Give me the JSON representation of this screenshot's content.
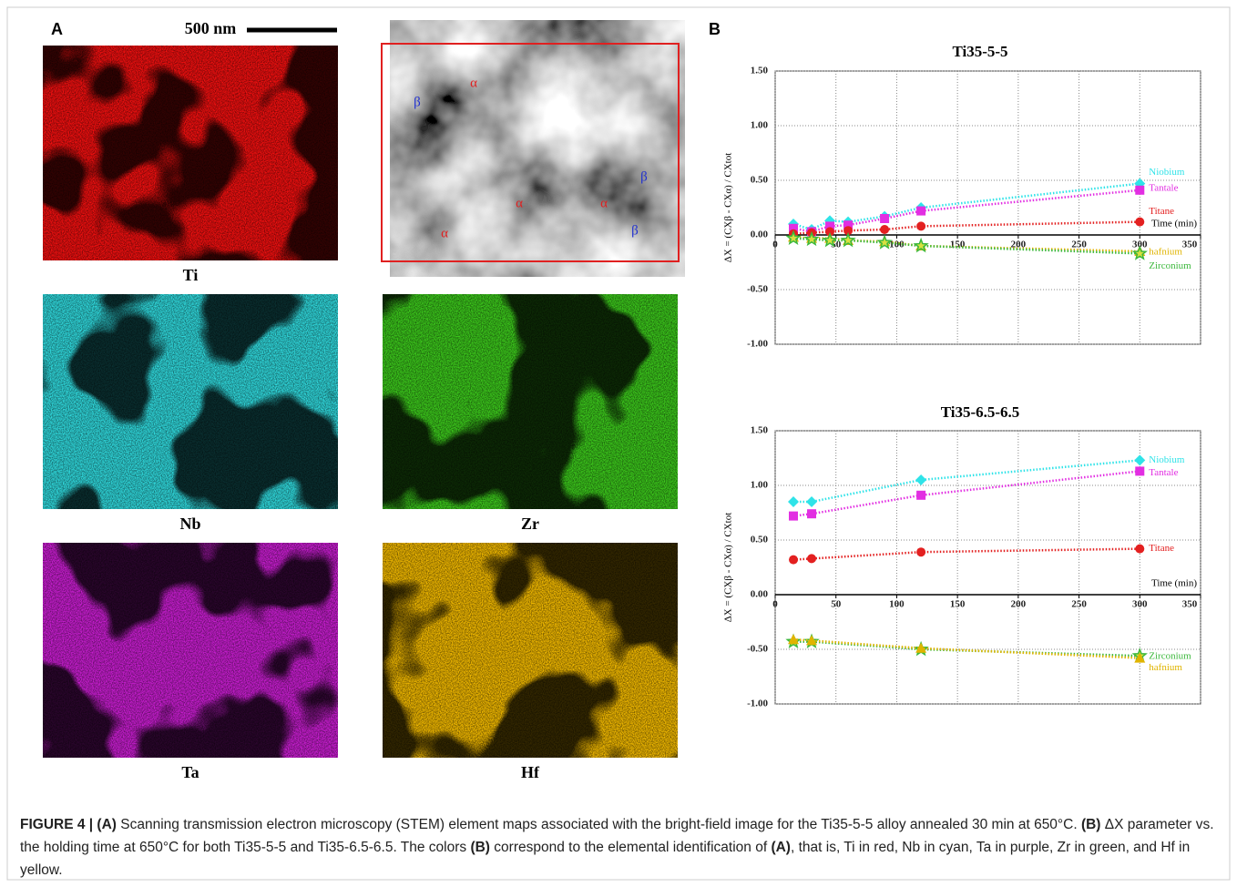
{
  "panel_a": {
    "label": "A",
    "scale_bar": "500 nm",
    "bright_field_labels": [
      "α",
      "α",
      "α",
      "α",
      "β",
      "β",
      "β"
    ],
    "maps": [
      "Ti",
      "Nb",
      "Zr",
      "Ta",
      "Hf"
    ]
  },
  "panel_b": {
    "label": "B"
  },
  "chart_data": [
    {
      "type": "line",
      "title": "Ti35-5-5",
      "y_label": "ΔX = (CXβ - CXα) / CXtot",
      "x_label": "Time (min)",
      "xlim": [
        0,
        350
      ],
      "xticks": [
        0,
        50,
        100,
        150,
        200,
        250,
        300,
        350
      ],
      "ylim": [
        -1,
        1.5
      ],
      "yticks": [
        {
          "value": -1,
          "label": "-1.00"
        },
        {
          "value": -0.5,
          "label": "-0.50"
        },
        {
          "value": 0,
          "label": "0.00"
        },
        {
          "value": 0.5,
          "label": "0.50"
        },
        {
          "value": 1,
          "label": "1.00"
        },
        {
          "value": 1.5,
          "label": "1.50"
        }
      ],
      "grid": true,
      "x": [
        15,
        30,
        45,
        60,
        90,
        120,
        300
      ],
      "series": [
        {
          "name": "Niobium",
          "color": "#2fe3e8",
          "marker": "diamond",
          "values": [
            0.1,
            0.05,
            0.13,
            0.12,
            0.17,
            0.25,
            0.47
          ]
        },
        {
          "name": "Tantale",
          "color": "#e22ee2",
          "marker": "square",
          "values": [
            0.06,
            0.03,
            0.08,
            0.09,
            0.15,
            0.22,
            0.41
          ]
        },
        {
          "name": "Titane",
          "color": "#e32020",
          "marker": "circle",
          "values": [
            0.01,
            0.02,
            0.03,
            0.04,
            0.05,
            0.08,
            0.12
          ]
        },
        {
          "name": "hafnium",
          "color": "#e0b400",
          "marker": "triangle",
          "values": [
            -0.02,
            -0.03,
            -0.03,
            -0.05,
            -0.06,
            -0.1,
            -0.15
          ]
        },
        {
          "name": "Zirconium",
          "color": "#3cb83c",
          "marker": "star",
          "values": [
            -0.03,
            -0.04,
            -0.05,
            -0.05,
            -0.07,
            -0.1,
            -0.17
          ]
        }
      ]
    },
    {
      "type": "line",
      "title": "Ti35-6.5-6.5",
      "y_label": "ΔX = (CXβ - CXα) / CXtot",
      "x_label": "Time (min)",
      "xlim": [
        0,
        350
      ],
      "xticks": [
        0,
        50,
        100,
        150,
        200,
        250,
        300,
        350
      ],
      "ylim": [
        -1,
        1.5
      ],
      "yticks": [
        {
          "value": -1,
          "label": "-1.00"
        },
        {
          "value": -0.5,
          "label": "-0.50"
        },
        {
          "value": 0,
          "label": "0.00"
        },
        {
          "value": 0.5,
          "label": "0.50"
        },
        {
          "value": 1,
          "label": "1.00"
        },
        {
          "value": 1.5,
          "label": "1.50"
        }
      ],
      "grid": true,
      "x": [
        15,
        30,
        120,
        300
      ],
      "series": [
        {
          "name": "Niobium",
          "color": "#2fe3e8",
          "marker": "diamond",
          "values": [
            0.85,
            0.85,
            1.05,
            1.23
          ]
        },
        {
          "name": "Tantale",
          "color": "#e22ee2",
          "marker": "square",
          "values": [
            0.72,
            0.74,
            0.91,
            1.13
          ]
        },
        {
          "name": "Titane",
          "color": "#e32020",
          "marker": "circle",
          "values": [
            0.32,
            0.33,
            0.39,
            0.42
          ]
        },
        {
          "name": "Zirconium",
          "color": "#3cb83c",
          "marker": "star",
          "values": [
            -0.43,
            -0.43,
            -0.5,
            -0.56
          ]
        },
        {
          "name": "hafnium",
          "color": "#e0b400",
          "marker": "triangle",
          "values": [
            -0.41,
            -0.42,
            -0.49,
            -0.58
          ]
        }
      ]
    }
  ],
  "caption": [
    "FIGURE 4 | (A)",
    " Scanning transmission electron microscopy (STEM) element maps associated with the bright-field image for the Ti35-5-5 alloy annealed 30 min at 650°C. ",
    "(B)",
    " ΔX parameter vs. the holding time at 650°C for both Ti35-5-5 and Ti35-6.5-6.5. The colors ",
    "(B)",
    " correspond to the elemental identification of ",
    "(A)",
    ", that is, Ti in red, Nb in cyan, Ta in purple, Zr in green, and Hf in yellow."
  ]
}
